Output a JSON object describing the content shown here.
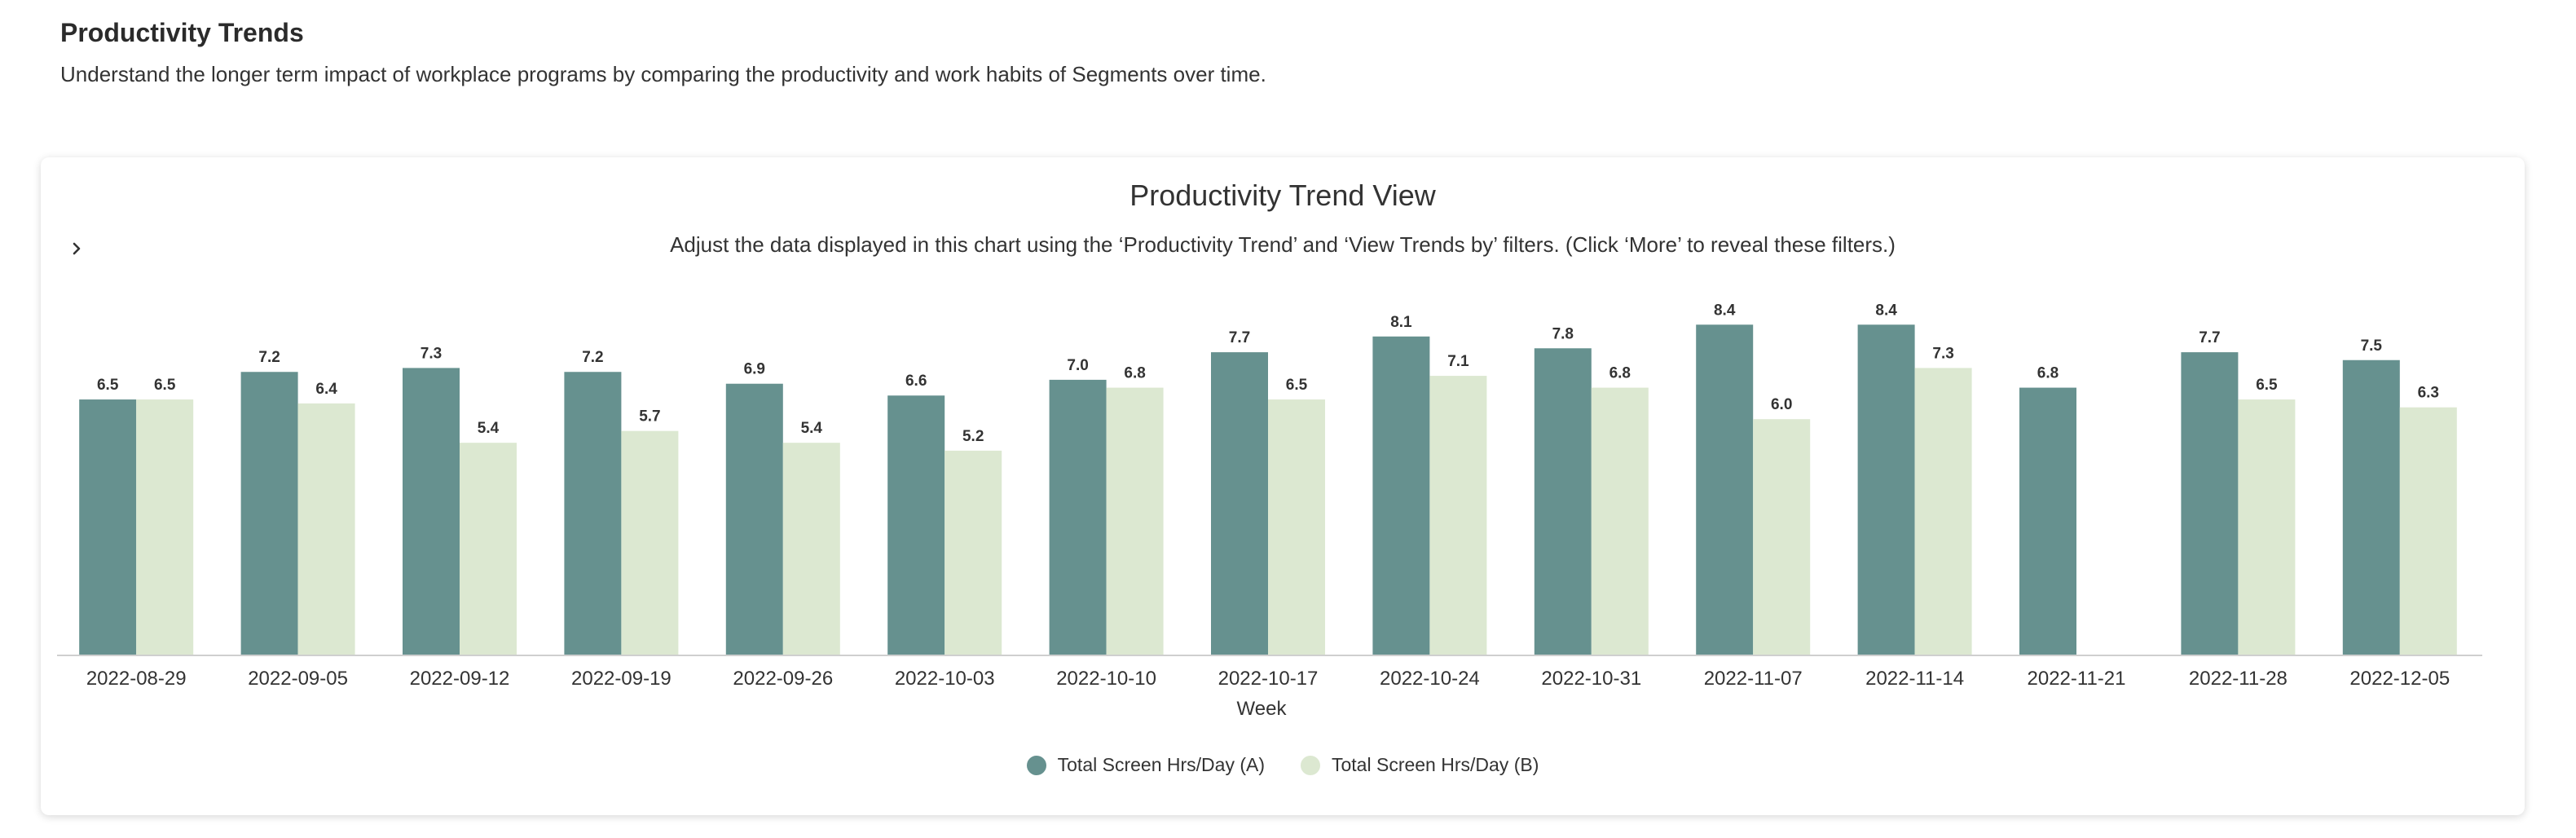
{
  "header": {
    "title": "Productivity Trends",
    "subtitle": "Understand the longer term impact of workplace programs by comparing the productivity and work habits of Segments over time."
  },
  "card": {
    "title": "Productivity Trend View",
    "subtitle": "Adjust the data displayed in this chart using the ‘Productivity Trend’ and ‘View Trends by’ filters. (Click ‘More’ to reveal these filters.)",
    "expand_icon": "chevron-right-icon"
  },
  "colors": {
    "series_a": "#66918f",
    "series_b": "#dce8d1"
  },
  "chart_data": {
    "type": "bar",
    "xlabel": "Week",
    "ylabel": "",
    "ylim": [
      0,
      9
    ],
    "grid": false,
    "legend_position": "bottom",
    "categories": [
      "2022-08-29",
      "2022-09-05",
      "2022-09-12",
      "2022-09-19",
      "2022-09-26",
      "2022-10-03",
      "2022-10-10",
      "2022-10-17",
      "2022-10-24",
      "2022-10-31",
      "2022-11-07",
      "2022-11-14",
      "2022-11-21",
      "2022-11-28",
      "2022-12-05"
    ],
    "series": [
      {
        "name": "Total Screen Hrs/Day (A)",
        "color": "#66918f",
        "values": [
          6.5,
          7.2,
          7.3,
          7.2,
          6.9,
          6.6,
          7.0,
          7.7,
          8.1,
          7.8,
          8.4,
          8.4,
          6.8,
          7.7,
          7.5
        ]
      },
      {
        "name": "Total Screen Hrs/Day (B)",
        "color": "#dce8d1",
        "values": [
          6.5,
          6.4,
          5.4,
          5.7,
          5.4,
          5.2,
          6.8,
          6.5,
          7.1,
          6.8,
          6.0,
          7.3,
          null,
          6.5,
          6.3
        ]
      }
    ]
  }
}
